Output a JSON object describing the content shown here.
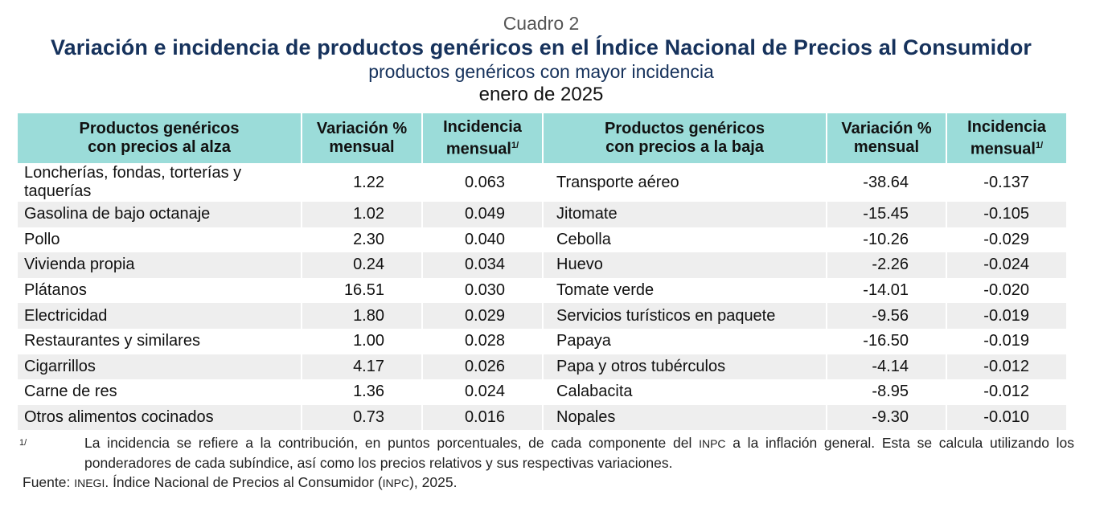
{
  "header": {
    "cuadro": "Cuadro 2",
    "title": "Variación e incidencia de productos genéricos en el Índice Nacional de Precios al Consumidor",
    "subtitle": "productos genéricos con mayor incidencia",
    "date": "enero de 2025"
  },
  "table": {
    "columns": {
      "up_name_1": "Productos genéricos",
      "up_name_2": "con precios al alza",
      "var_1": "Variación %",
      "var_2": "mensual",
      "inc_1": "Incidencia",
      "inc_2": "mensual",
      "inc_sup": "1/",
      "down_name_1": "Productos genéricos",
      "down_name_2": "con precios a la baja"
    },
    "rows": [
      {
        "up": "Loncherías, fondas, torterías y taquerías",
        "up_var": "1.22",
        "up_inc": "0.063",
        "down": "Transporte aéreo",
        "down_var": "-38.64",
        "down_inc": "-0.137"
      },
      {
        "up": "Gasolina de bajo octanaje",
        "up_var": "1.02",
        "up_inc": "0.049",
        "down": "Jitomate",
        "down_var": "-15.45",
        "down_inc": "-0.105"
      },
      {
        "up": "Pollo",
        "up_var": "2.30",
        "up_inc": "0.040",
        "down": "Cebolla",
        "down_var": "-10.26",
        "down_inc": "-0.029"
      },
      {
        "up": "Vivienda propia",
        "up_var": "0.24",
        "up_inc": "0.034",
        "down": "Huevo",
        "down_var": "-2.26",
        "down_inc": "-0.024"
      },
      {
        "up": "Plátanos",
        "up_var": "16.51",
        "up_inc": "0.030",
        "down": "Tomate verde",
        "down_var": "-14.01",
        "down_inc": "-0.020"
      },
      {
        "up": "Electricidad",
        "up_var": "1.80",
        "up_inc": "0.029",
        "down": "Servicios turísticos en paquete",
        "down_var": "-9.56",
        "down_inc": "-0.019"
      },
      {
        "up": "Restaurantes y similares",
        "up_var": "1.00",
        "up_inc": "0.028",
        "down": "Papaya",
        "down_var": "-16.50",
        "down_inc": "-0.019"
      },
      {
        "up": "Cigarrillos",
        "up_var": "4.17",
        "up_inc": "0.026",
        "down": "Papa y otros tubérculos",
        "down_var": "-4.14",
        "down_inc": "-0.012"
      },
      {
        "up": "Carne de res",
        "up_var": "1.36",
        "up_inc": "0.024",
        "down": "Calabacita",
        "down_var": "-8.95",
        "down_inc": "-0.012"
      },
      {
        "up": "Otros alimentos cocinados",
        "up_var": "0.73",
        "up_inc": "0.016",
        "down": "Nopales",
        "down_var": "-9.30",
        "down_inc": "-0.010"
      }
    ]
  },
  "footnote": {
    "mark": "1/",
    "text_a": "La incidencia se refiere a la contribución, en puntos porcentuales, de cada componente del ",
    "inpc": "INPC",
    "text_b": " a la inflación general. Esta se calcula utilizando los ponderadores de cada subíndice, así como los precios relativos y sus respectivas variaciones."
  },
  "source": {
    "label": "Fuente: ",
    "inegi": "INEGI",
    "text_a": ". Índice Nacional de Precios al Consumidor (",
    "inpc": "INPC",
    "text_b": "), 2025."
  },
  "colors": {
    "header_bg": "#9bdcd9",
    "title": "#16325c",
    "stripe": "#eeeeee"
  }
}
